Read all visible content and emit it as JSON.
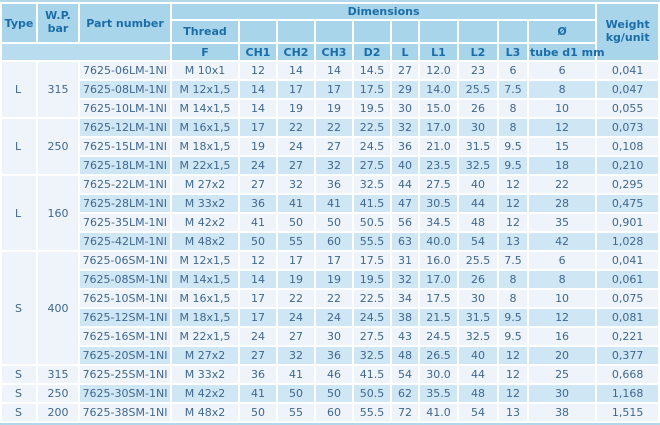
{
  "table": {
    "header": {
      "type": "Type",
      "wp": "W.P. bar",
      "part_number": "Part number",
      "dimensions": "Dimensions",
      "thread": "Thread",
      "diameter": "Ø",
      "weight": "Weight kg/unit",
      "sub": [
        "F",
        "CH1",
        "CH2",
        "CH3",
        "D2",
        "L",
        "L1",
        "L2",
        "L3",
        "tube d1 mm"
      ]
    },
    "colors": {
      "header_bg": "#a9d5eb",
      "header_text": "#1b6da9",
      "row_light": "#eef4f9",
      "row_blue": "#cfe6f4",
      "data_text": "#40688f",
      "outer_border": "#b3d7ea"
    },
    "groups": [
      {
        "type": "L",
        "wp": "315",
        "rows": [
          [
            "7625-06LM-1NI",
            "M 10x1",
            "12",
            "14",
            "14",
            "14.5",
            "27",
            "12.0",
            "23",
            "6",
            "6",
            "0,041"
          ],
          [
            "7625-08LM-1NI",
            "M 12x1,5",
            "14",
            "17",
            "17",
            "17.5",
            "29",
            "14.0",
            "25.5",
            "7.5",
            "8",
            "0,047"
          ],
          [
            "7625-10LM-1NI",
            "M 14x1,5",
            "14",
            "19",
            "19",
            "19.5",
            "30",
            "15.0",
            "26",
            "8",
            "10",
            "0,055"
          ]
        ]
      },
      {
        "type": "L",
        "wp": "250",
        "rows": [
          [
            "7625-12LM-1NI",
            "M 16x1,5",
            "17",
            "22",
            "22",
            "22.5",
            "32",
            "17.0",
            "30",
            "8",
            "12",
            "0,073"
          ],
          [
            "7625-15LM-1NI",
            "M 18x1,5",
            "19",
            "24",
            "27",
            "24.5",
            "36",
            "21.0",
            "31.5",
            "9.5",
            "15",
            "0,108"
          ],
          [
            "7625-18LM-1NI",
            "M 22x1,5",
            "24",
            "27",
            "32",
            "27.5",
            "40",
            "23.5",
            "32.5",
            "9.5",
            "18",
            "0,210"
          ]
        ]
      },
      {
        "type": "L",
        "wp": "160",
        "rows": [
          [
            "7625-22LM-1NI",
            "M 27x2",
            "27",
            "32",
            "36",
            "32.5",
            "44",
            "27.5",
            "40",
            "12",
            "22",
            "0,295"
          ],
          [
            "7625-28LM-1NI",
            "M 33x2",
            "36",
            "41",
            "41",
            "41.5",
            "47",
            "30.5",
            "44",
            "12",
            "28",
            "0,475"
          ],
          [
            "7625-35LM-1NI",
            "M 42x2",
            "41",
            "50",
            "50",
            "50.5",
            "56",
            "34.5",
            "48",
            "12",
            "35",
            "0,901"
          ],
          [
            "7625-42LM-1NI",
            "M 48x2",
            "50",
            "55",
            "60",
            "55.5",
            "63",
            "40.0",
            "54",
            "13",
            "42",
            "1,028"
          ]
        ]
      },
      {
        "type": "S",
        "wp": "400",
        "rows": [
          [
            "7625-06SM-1NI",
            "M 12x1,5",
            "12",
            "17",
            "17",
            "17.5",
            "31",
            "16.0",
            "25.5",
            "7.5",
            "6",
            "0,041"
          ],
          [
            "7625-08SM-1NI",
            "M 14x1,5",
            "14",
            "19",
            "19",
            "19.5",
            "32",
            "17.0",
            "26",
            "8",
            "8",
            "0,061"
          ],
          [
            "7625-10SM-1NI",
            "M 16x1,5",
            "17",
            "22",
            "22",
            "22.5",
            "34",
            "17.5",
            "30",
            "8",
            "10",
            "0,075"
          ],
          [
            "7625-12SM-1NI",
            "M 18x1,5",
            "17",
            "24",
            "24",
            "24.5",
            "38",
            "21.5",
            "31.5",
            "9.5",
            "12",
            "0,081"
          ],
          [
            "7625-16SM-1NI",
            "M 22x1,5",
            "24",
            "27",
            "30",
            "27.5",
            "43",
            "24.5",
            "32.5",
            "9.5",
            "16",
            "0,221"
          ],
          [
            "7625-20SM-1NI",
            "M 27x2",
            "27",
            "32",
            "36",
            "32.5",
            "48",
            "26.5",
            "40",
            "12",
            "20",
            "0,377"
          ]
        ]
      },
      {
        "type": "S",
        "wp": "315",
        "rows": [
          [
            "7625-25SM-1NI",
            "M 33x2",
            "36",
            "41",
            "46",
            "41.5",
            "54",
            "30.0",
            "44",
            "12",
            "25",
            "0,668"
          ]
        ]
      },
      {
        "type": "S",
        "wp": "250",
        "rows": [
          [
            "7625-30SM-1NI",
            "M 42x2",
            "41",
            "50",
            "50",
            "50.5",
            "62",
            "35.5",
            "48",
            "12",
            "30",
            "1,168"
          ]
        ]
      },
      {
        "type": "S",
        "wp": "200",
        "rows": [
          [
            "7625-38SM-1NI",
            "M 48x2",
            "50",
            "55",
            "60",
            "55.5",
            "72",
            "41.0",
            "54",
            "13",
            "38",
            "1,515"
          ]
        ]
      }
    ]
  }
}
